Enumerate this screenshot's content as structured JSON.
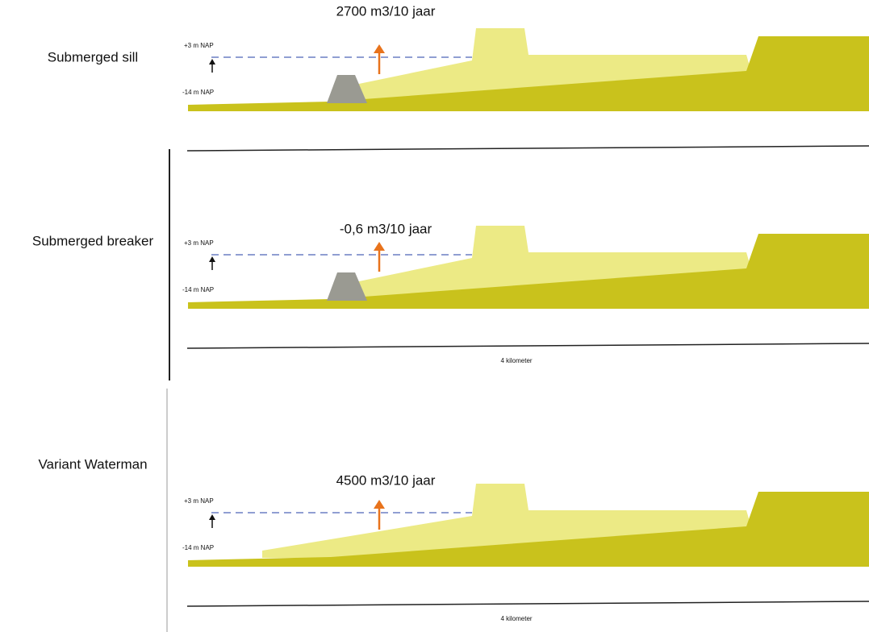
{
  "panels": [
    {
      "label": "Submerged sill",
      "flux": "2700 m3/10 jaar",
      "top_level": "+3 m NAP",
      "bottom_level": "-14 m NAP",
      "structure": true
    },
    {
      "label": "Submerged breaker",
      "flux": "-0,6 m3/10 jaar",
      "top_level": "+3 m NAP",
      "bottom_level": "-14 m NAP",
      "scale": "4 kilometer",
      "structure": true
    },
    {
      "label": "Variant Waterman",
      "flux": "4500 m3/10 jaar",
      "top_level": "+3 m NAP",
      "bottom_level": "-14 m NAP",
      "scale": "4 kilometer",
      "structure": false
    }
  ]
}
